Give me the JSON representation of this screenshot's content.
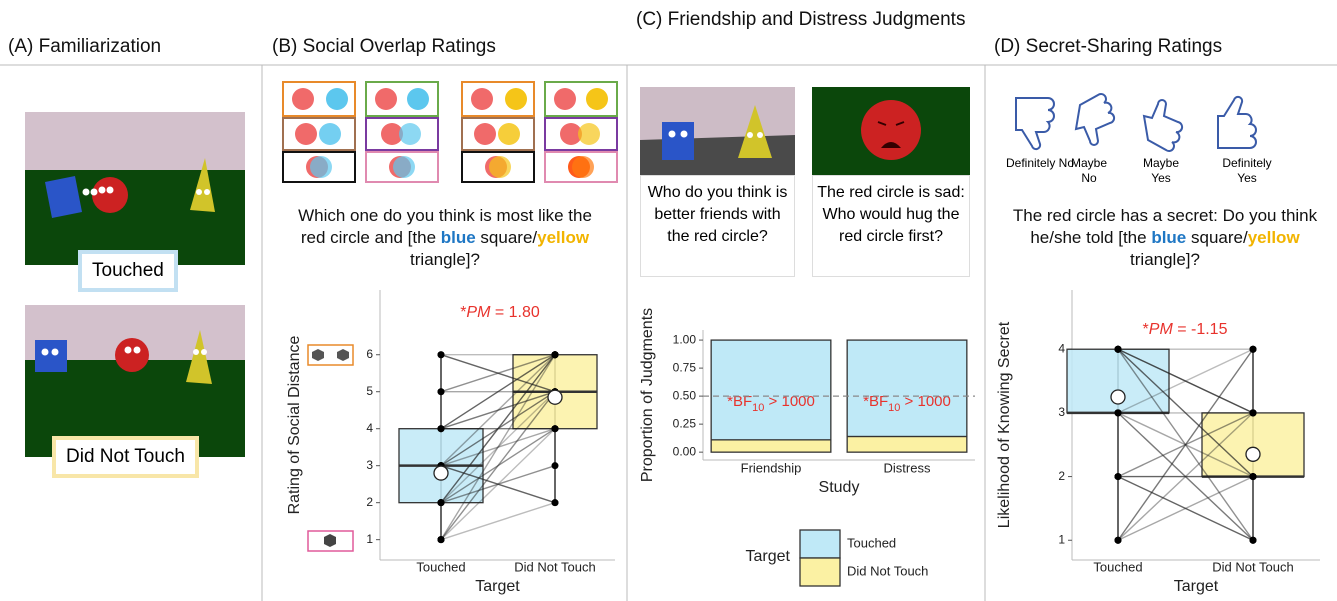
{
  "panels": {
    "a": {
      "title": "(A) Familiarization",
      "conditions": [
        "Touched",
        "Did Not Touch"
      ]
    },
    "b": {
      "title": "(B) Social Overlap Ratings",
      "question": [
        "Which one do you think is most like the red circle and [the ",
        "blue",
        " square/",
        "yellow",
        " triangle]?"
      ]
    },
    "c": {
      "title": "(C) Friendship and Distress Judgments",
      "prompts": [
        "Who do you think is better friends with the red circle?",
        "The red circle is sad: Who would hug the red circle first?"
      ]
    },
    "d": {
      "title": "(D) Secret-Sharing Ratings",
      "scale": [
        "Definitely No",
        "Maybe No",
        "Maybe Yes",
        "Definitely Yes"
      ],
      "question": [
        "The red circle has a secret: Do you think he/she told [the ",
        "blue",
        " square/",
        "yellow",
        " triangle]?"
      ]
    }
  },
  "chart_data": [
    {
      "type": "box",
      "categories": [
        "Touched",
        "Did Not Touch"
      ],
      "boxes": [
        {
          "whisker_low": 1,
          "q1": 2,
          "median": 3,
          "q3": 4,
          "whisker_high": 6,
          "mean": 2.8,
          "color": "#bfe9f7"
        },
        {
          "whisker_low": 2,
          "q1": 4,
          "median": 5,
          "q3": 6,
          "whisker_high": 6,
          "mean": 4.85,
          "color": "#fbf1a3"
        }
      ],
      "pairs_from": [
        6,
        5,
        4,
        3,
        3,
        2,
        1,
        2,
        3,
        4,
        1,
        2,
        3,
        5,
        4,
        1,
        2,
        6,
        1
      ],
      "pairs_to": [
        6,
        6,
        6,
        6,
        5,
        5,
        5,
        6,
        4,
        5,
        4,
        3,
        2,
        5,
        4,
        2,
        4,
        5,
        6
      ],
      "annotation": [
        "*",
        "PM",
        " = 1.80"
      ],
      "annotation_color": "#e8322c",
      "xlabel": "Target",
      "ylabel": "Rating of Social Distance",
      "ylim": [
        0.45,
        7.75
      ],
      "yticks": [
        1,
        2,
        3,
        4,
        5,
        6
      ]
    },
    {
      "type": "stacked_bar",
      "categories": [
        "Friendship",
        "Distress"
      ],
      "series": [
        {
          "name": "Touched",
          "color": "#bfe9f7",
          "values": [
            0.89,
            0.86
          ]
        },
        {
          "name": "Did Not Touch",
          "color": "#fbf1a3",
          "values": [
            0.11,
            0.14
          ]
        }
      ],
      "annotations": [
        [
          "*BF",
          "10",
          " > 1000"
        ],
        [
          "*BF",
          "10",
          " > 1000"
        ]
      ],
      "annotation_color": "#e8322c",
      "reference_line": 0.5,
      "xlabel": "Study",
      "ylabel": "Proportion of Judgments",
      "legend_title": "Target",
      "ylim": [
        -0.07,
        1.09
      ],
      "yticks": [
        {
          "value": 0,
          "label": "0.00"
        },
        {
          "value": 0.25,
          "label": "0.25"
        },
        {
          "value": 0.5,
          "label": "0.50"
        },
        {
          "value": 0.75,
          "label": "0.75"
        },
        {
          "value": 1,
          "label": "1.00"
        }
      ]
    },
    {
      "type": "box",
      "categories": [
        "Touched",
        "Did Not Touch"
      ],
      "boxes": [
        {
          "whisker_low": 1,
          "q1": 3,
          "median": 3,
          "q3": 4,
          "whisker_high": 4,
          "mean": 3.25,
          "color": "#bfe9f7"
        },
        {
          "whisker_low": 1,
          "q1": 2,
          "median": 2,
          "q3": 3,
          "whisker_high": 4,
          "mean": 2.35,
          "color": "#fbf1a3"
        }
      ],
      "pairs_from": [
        4,
        4,
        4,
        3,
        3,
        3,
        2,
        2,
        1,
        1,
        3,
        4,
        2,
        1,
        4
      ],
      "pairs_to": [
        4,
        3,
        2,
        2,
        1,
        4,
        3,
        1,
        3,
        4,
        3,
        1,
        2,
        2,
        3
      ],
      "annotation": [
        "*",
        "PM",
        " = -1.15"
      ],
      "annotation_color": "#e8322c",
      "xlabel": "Target",
      "ylabel": "Likelihood of Knowing Secret",
      "ylim": [
        0.69,
        4.93
      ],
      "yticks": [
        1,
        2,
        3,
        4
      ]
    }
  ]
}
